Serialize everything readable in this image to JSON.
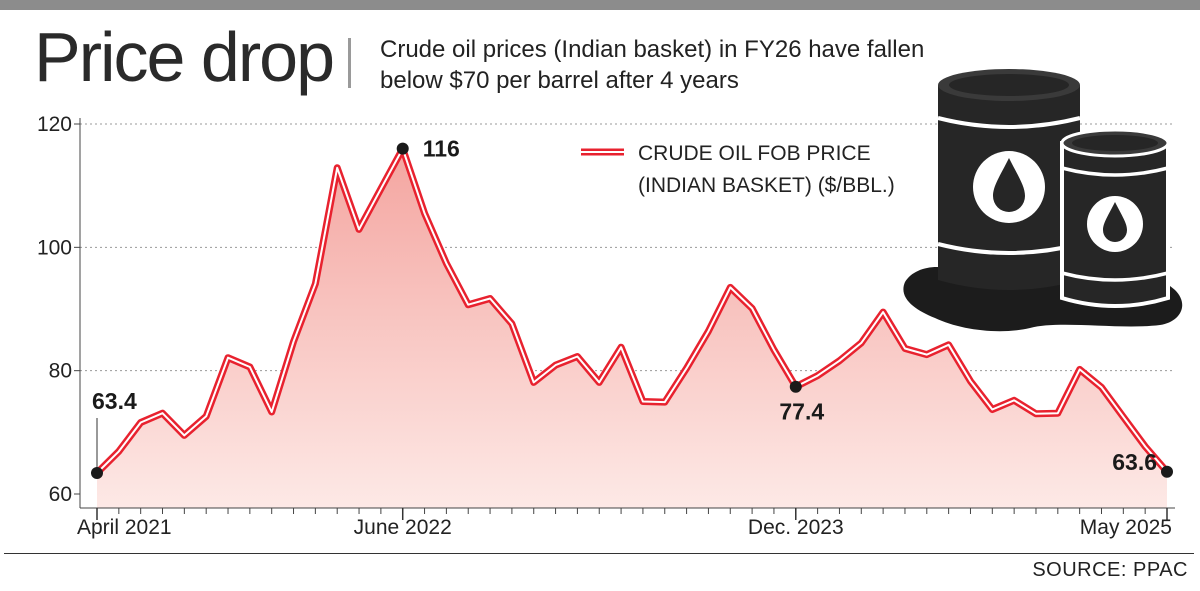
{
  "header": {
    "title": "Price drop",
    "subtitle_line1": "Crude oil prices (Indian basket) in FY26 have fallen",
    "subtitle_line2": "below $70 per barrel after 4 years"
  },
  "footer": {
    "source": "SOURCE: PPAC"
  },
  "legend": {
    "line1": "CRUDE OIL FOB PRICE",
    "line2": "(INDIAN BASKET) ($/BBL.)"
  },
  "illustration": {
    "icon": "oil-barrels-icon"
  },
  "colors": {
    "line": "#e8222f",
    "fill_top": "#f4a5a0",
    "fill_bottom": "#fde9e6",
    "marker": "#1a1a1a"
  },
  "chart_data": {
    "type": "line",
    "title": "Price drop",
    "ylim": [
      60,
      120
    ],
    "yticks": [
      60,
      80,
      100,
      120
    ],
    "grid": "horizontal dotted",
    "legend_position": "top-center",
    "x_tick_labels": [
      {
        "index": 0,
        "label": "April 2021"
      },
      {
        "index": 14,
        "label": "June 2022"
      },
      {
        "index": 32,
        "label": "Dec. 2023"
      },
      {
        "index": 49,
        "label": "May 2025"
      }
    ],
    "series": [
      {
        "name": "CRUDE OIL FOB PRICE (INDIAN BASKET) ($/BBL.)",
        "x": [
          "Apr 2021",
          "May 2021",
          "Jun 2021",
          "Jul 2021",
          "Aug 2021",
          "Sep 2021",
          "Oct 2021",
          "Nov 2021",
          "Dec 2021",
          "Jan 2022",
          "Feb 2022",
          "Mar 2022",
          "Apr 2022",
          "May 2022",
          "Jun 2022",
          "Jul 2022",
          "Aug 2022",
          "Sep 2022",
          "Oct 2022",
          "Nov 2022",
          "Dec 2022",
          "Jan 2023",
          "Feb 2023",
          "Mar 2023",
          "Apr 2023",
          "May 2023",
          "Jun 2023",
          "Jul 2023",
          "Aug 2023",
          "Sep 2023",
          "Oct 2023",
          "Nov 2023",
          "Dec 2023",
          "Jan 2024",
          "Feb 2024",
          "Mar 2024",
          "Apr 2024",
          "May 2024",
          "Jun 2024",
          "Jul 2024",
          "Aug 2024",
          "Sep 2024",
          "Oct 2024",
          "Nov 2024",
          "Dec 2024",
          "Jan 2025",
          "Feb 2025",
          "Mar 2025",
          "Apr 2025",
          "May 2025"
        ],
        "values": [
          63.4,
          66.9,
          71.6,
          73.1,
          69.5,
          72.6,
          82.1,
          80.6,
          73.3,
          84.7,
          94.1,
          112.9,
          102.9,
          109.5,
          116.0,
          105.5,
          97.4,
          90.7,
          91.7,
          87.6,
          78.1,
          80.9,
          82.3,
          78.1,
          83.8,
          75.0,
          74.9,
          80.4,
          86.4,
          93.5,
          90.1,
          83.4,
          77.4,
          79.2,
          81.6,
          84.5,
          89.5,
          83.6,
          82.6,
          84.2,
          78.3,
          73.7,
          75.2,
          73.0,
          73.1,
          80.2,
          77.3,
          72.5,
          67.7,
          63.6
        ]
      }
    ],
    "annotations": [
      {
        "index": 0,
        "label": "63.4"
      },
      {
        "index": 14,
        "label": "116"
      },
      {
        "index": 32,
        "label": "77.4"
      },
      {
        "index": 49,
        "label": "63.6"
      }
    ]
  }
}
